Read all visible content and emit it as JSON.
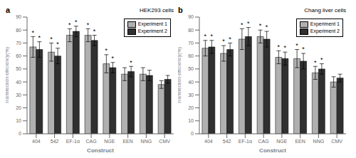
{
  "chart_data": [
    {
      "type": "bar",
      "title": "HEK293 cells",
      "panel_label": "a",
      "x_label": "Construct",
      "y_label": "Transfection efficiency(%)",
      "categories": [
        "404",
        "542",
        "EF-1α",
        "CAG",
        "NGE",
        "EEN",
        "NNG",
        "CMV"
      ],
      "series": [
        {
          "name": "Experiment 1",
          "color": "#b0b0b0",
          "values": [
            67,
            63,
            76,
            76,
            54,
            46,
            46,
            38
          ],
          "errors": [
            8,
            7,
            5,
            5,
            7,
            5,
            5,
            3
          ],
          "annotations": [
            "*",
            "*",
            "*",
            "*",
            "*",
            null,
            null,
            null
          ]
        },
        {
          "name": "Experiment 2",
          "color": "#303030",
          "values": [
            65,
            60,
            79,
            72,
            51,
            48,
            45,
            42
          ],
          "errors": [
            6,
            6,
            4,
            4,
            4,
            4,
            4,
            3
          ],
          "annotations": [
            "*",
            "*",
            "*",
            "*",
            "*",
            "*",
            null,
            null
          ]
        }
      ],
      "ylim": [
        0,
        90
      ],
      "yticks": [
        0,
        10,
        20,
        30,
        40,
        50,
        60,
        70,
        80,
        90
      ],
      "legend": "upper right",
      "grid": false
    },
    {
      "type": "bar",
      "title": "Chang liver cells",
      "panel_label": "b",
      "x_label": "Construct",
      "y_label": "Transfection efficiency(%)",
      "categories": [
        "404",
        "542",
        "EF-1α",
        "CAG",
        "NGE",
        "EEN",
        "NNG",
        "CMV"
      ],
      "series": [
        {
          "name": "Experiment 1",
          "color": "#b0b0b0",
          "values": [
            66,
            62,
            73,
            75,
            59,
            58,
            47,
            40
          ],
          "errors": [
            6,
            6,
            8,
            5,
            5,
            7,
            5,
            4
          ],
          "annotations": [
            "*",
            "*",
            "*",
            "*",
            "*",
            "*",
            "*",
            null
          ]
        },
        {
          "name": "Experiment 2",
          "color": "#303030",
          "values": [
            67,
            65,
            75,
            73,
            58,
            56,
            50,
            43
          ],
          "errors": [
            5,
            5,
            7,
            6,
            5,
            6,
            4,
            3
          ],
          "annotations": [
            "*",
            "*",
            "*",
            "*",
            "*",
            "*",
            "*",
            null
          ]
        }
      ],
      "ylim": [
        0,
        90
      ],
      "yticks": [
        0,
        10,
        20,
        30,
        40,
        50,
        60,
        70,
        80,
        90
      ],
      "legend": "upper right",
      "grid": false
    }
  ]
}
